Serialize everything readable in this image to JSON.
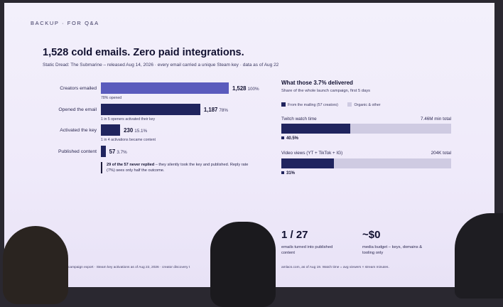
{
  "kicker": "BACKUP · FOR Q&A",
  "title": "1,528 cold emails. Zero paid integrations.",
  "subtitle": "Static Dread: The Submarine – released Aug 14, 2026 · every email carried a unique Steam key · data as of Aug 22",
  "funnel": {
    "stages": [
      {
        "label": "Creators emailed",
        "value": "1,528",
        "pct": "100%",
        "fraction": 1.0,
        "note": "78% opened"
      },
      {
        "label": "Opened the email",
        "value": "1,187",
        "pct": "78%",
        "fraction": 0.777,
        "note": "1 in 5 openers activated their key"
      },
      {
        "label": "Activated the key",
        "value": "230",
        "pct": "15.1%",
        "fraction": 0.151,
        "note": "1 in 4 activations became content"
      },
      {
        "label": "Published content",
        "value": "57",
        "pct": "3.7%",
        "fraction": 0.037,
        "note": ""
      }
    ],
    "callout_bold": "29 of the 57 never replied",
    "callout_rest": " – they silently took the key and published. Reply rate (7%) sees only half the outcome."
  },
  "impact": {
    "title": "What those 3.7% delivered",
    "subtitle": "Share of the whole launch campaign, first 5 days",
    "legend_mailing": "From the mailing (57 creators)",
    "legend_other": "Organic & other",
    "metrics": [
      {
        "label": "Twitch watch time",
        "total": "7.46M min total",
        "share": "40.5%",
        "fraction": 0.405
      },
      {
        "label": "Video views (YT + TikTok + IG)",
        "total": "204K total",
        "share": "31%",
        "fraction": 0.31
      }
    ]
  },
  "stats": [
    {
      "big": "1 / 27",
      "small": "emails turned into published content"
    },
    {
      "big": "~$0",
      "small": "media budget – keys, domains & tooling only"
    }
  ],
  "footer_left": "campaign export · Steam key activations as of Aug 22, 2026 · creator discovery t",
  "footer_right": "amlacs.com, as of Aug 19. Watch time = avg viewers × stream minutes."
}
